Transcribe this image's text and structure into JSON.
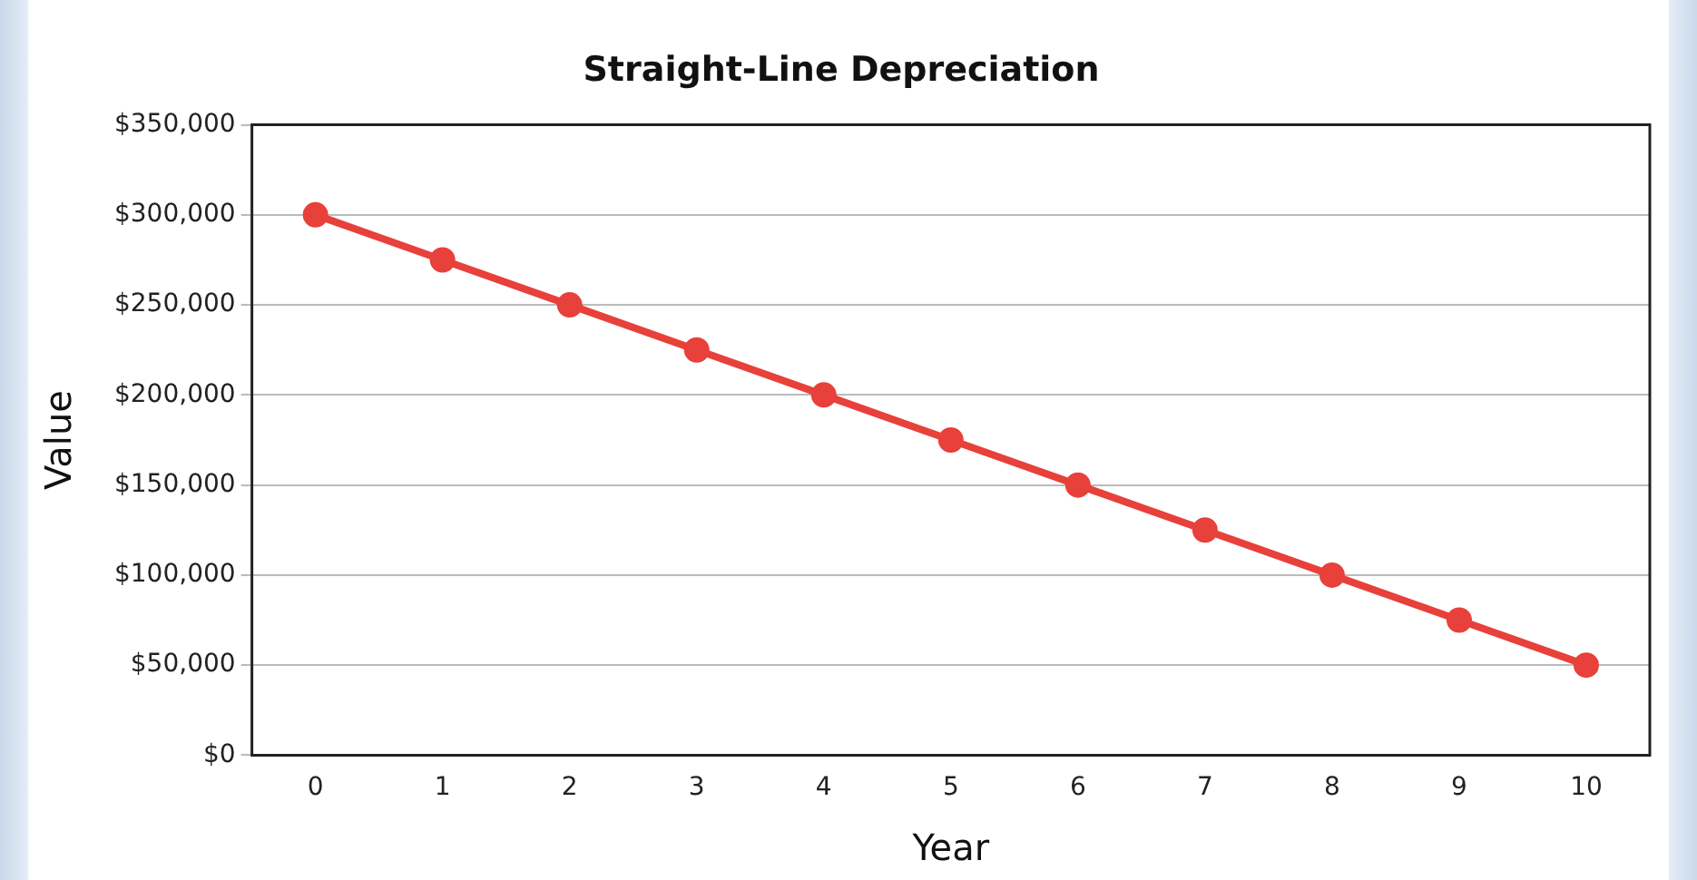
{
  "chart_data": {
    "type": "line",
    "title": "Straight-Line Depreciation",
    "xlabel": "Year",
    "ylabel": "Value",
    "categories": [
      "0",
      "1",
      "2",
      "3",
      "4",
      "5",
      "6",
      "7",
      "8",
      "9",
      "10"
    ],
    "series": [
      {
        "color": "#e8403a",
        "values": [
          300000,
          275000,
          250000,
          225000,
          200000,
          175000,
          150000,
          125000,
          100000,
          75000,
          50000
        ]
      }
    ],
    "ylim": [
      0,
      350000
    ],
    "yticks": [
      {
        "value": 0,
        "label": "$0"
      },
      {
        "value": 50000,
        "label": "$50,000"
      },
      {
        "value": 100000,
        "label": "$100,000"
      },
      {
        "value": 150000,
        "label": "$150,000"
      },
      {
        "value": 200000,
        "label": "$200,000"
      },
      {
        "value": 250000,
        "label": "$250,000"
      },
      {
        "value": 300000,
        "label": "$300,000"
      },
      {
        "value": 350000,
        "label": "$350,000"
      }
    ],
    "grid": "y",
    "legend": false,
    "marker": "circle",
    "line_style": "solid"
  }
}
